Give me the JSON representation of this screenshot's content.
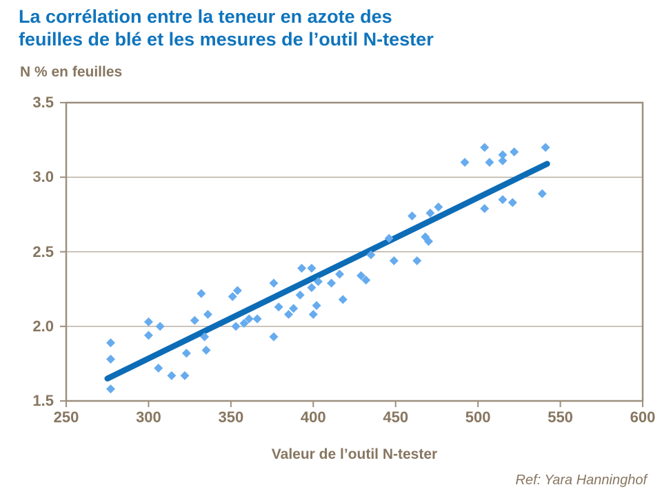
{
  "header": {
    "title_line1": "La corrélation entre la teneur en azote des",
    "title_line2": "feuilles de blé et les mesures de l’outil N-tester"
  },
  "footer": {
    "ref_text": "Ref: Yara Hanninghof"
  },
  "colors": {
    "title_blue": "#0F74BC",
    "trendline_blue": "#0D6CB6",
    "point_blue": "#66ABEE",
    "axis_text_brown": "#877660",
    "frame_gray": "#9C8F7F",
    "grid_gray": "#AEA092",
    "background": "#FFFFFF"
  },
  "chart_data": {
    "type": "scatter",
    "title": "La corrélation entre la teneur en azote des feuilles de blé et les mesures de l’outil N-tester",
    "xlabel": "Valeur de l’outil N-tester",
    "ylabel": "N % en feuilles",
    "xlim": [
      250,
      600
    ],
    "ylim": [
      1.5,
      3.5
    ],
    "x_tick_labels": [
      "250",
      "300",
      "350",
      "400",
      "450",
      "500",
      "550",
      "600"
    ],
    "y_tick_labels": [
      "3.5",
      "3.0",
      "2.5",
      "2.0",
      "1.5"
    ],
    "grid": "horizontal gridlines at each y tick, full box frame",
    "legend": "none",
    "marker": "diamond",
    "points": [
      [
        277,
        1.89
      ],
      [
        277,
        1.78
      ],
      [
        277,
        1.58
      ],
      [
        300,
        2.03
      ],
      [
        300,
        1.94
      ],
      [
        307,
        2.0
      ],
      [
        306,
        1.72
      ],
      [
        314,
        1.67
      ],
      [
        322,
        1.67
      ],
      [
        323,
        1.82
      ],
      [
        328,
        2.04
      ],
      [
        332,
        2.22
      ],
      [
        334,
        1.93
      ],
      [
        335,
        1.84
      ],
      [
        336,
        2.08
      ],
      [
        351,
        2.2
      ],
      [
        354,
        2.24
      ],
      [
        353,
        2.0
      ],
      [
        358,
        2.02
      ],
      [
        361,
        2.05
      ],
      [
        366,
        2.05
      ],
      [
        376,
        2.29
      ],
      [
        376,
        1.93
      ],
      [
        379,
        2.13
      ],
      [
        385,
        2.08
      ],
      [
        388,
        2.12
      ],
      [
        392,
        2.21
      ],
      [
        393,
        2.39
      ],
      [
        399,
        2.39
      ],
      [
        399,
        2.26
      ],
      [
        400,
        2.08
      ],
      [
        402,
        2.14
      ],
      [
        403,
        2.3
      ],
      [
        411,
        2.29
      ],
      [
        416,
        2.35
      ],
      [
        418,
        2.18
      ],
      [
        429,
        2.34
      ],
      [
        432,
        2.31
      ],
      [
        435,
        2.48
      ],
      [
        446,
        2.59
      ],
      [
        449,
        2.44
      ],
      [
        460,
        2.74
      ],
      [
        463,
        2.44
      ],
      [
        468,
        2.6
      ],
      [
        470,
        2.57
      ],
      [
        471,
        2.76
      ],
      [
        476,
        2.8
      ],
      [
        492,
        3.1
      ],
      [
        504,
        3.2
      ],
      [
        504,
        2.79
      ],
      [
        507,
        3.1
      ],
      [
        515,
        3.15
      ],
      [
        515,
        3.11
      ],
      [
        515,
        2.85
      ],
      [
        521,
        2.83
      ],
      [
        522,
        3.17
      ],
      [
        539,
        2.89
      ],
      [
        541,
        3.2
      ]
    ],
    "trendline": {
      "x1": 275,
      "y1": 1.65,
      "x2": 542,
      "y2": 3.09
    }
  }
}
